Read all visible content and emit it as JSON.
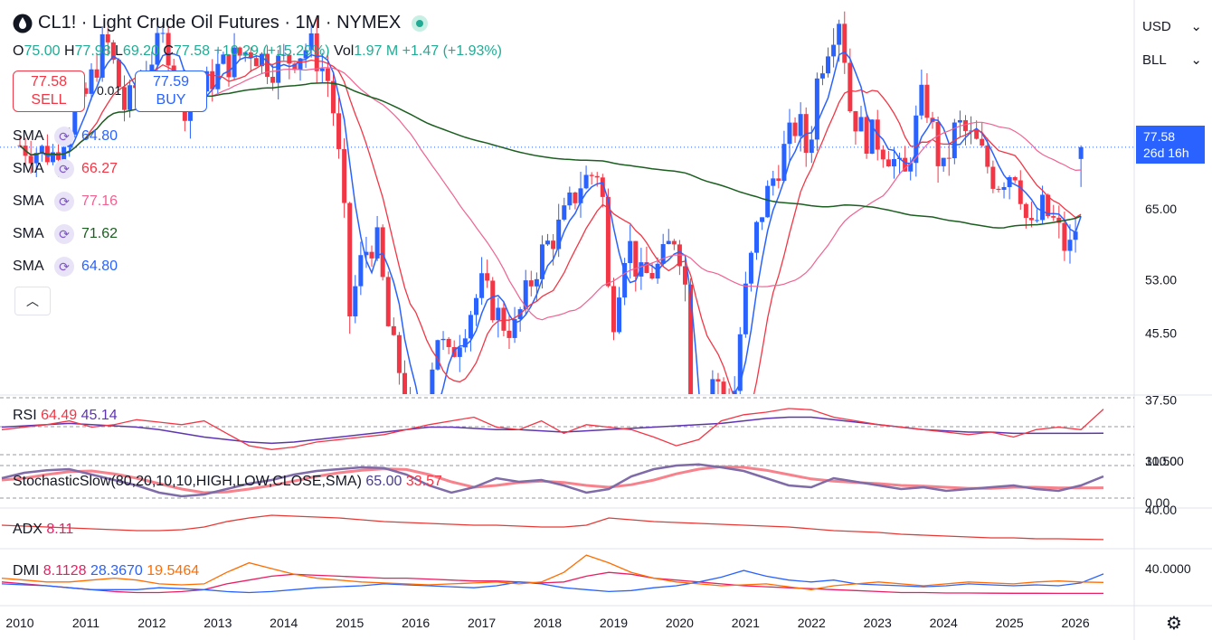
{
  "header": {
    "title": "CL1! · Light Crude Oil Futures · 1M · NYMEX",
    "open_label": "O",
    "open": "75.00",
    "high_label": "H",
    "high": "77.98",
    "low_label": "L",
    "low": "69.20",
    "close_label": "C",
    "close": "77.58",
    "change": "+10.29 (+15.29%)",
    "vol_label": "Vol",
    "vol": "1.97 M",
    "vol_change": "+1.47 (+1.93%)"
  },
  "trade": {
    "sell_price": "77.58",
    "sell_label": "SELL",
    "buy_price": "77.59",
    "buy_label": "BUY",
    "spread": "0.01"
  },
  "sma_legend": [
    {
      "label": "SMA",
      "value": "64.80",
      "color": "#2962ff"
    },
    {
      "label": "SMA",
      "value": "66.27",
      "color": "#f23645"
    },
    {
      "label": "SMA",
      "value": "77.16",
      "color": "#f06292"
    },
    {
      "label": "SMA",
      "value": "71.62",
      "color": "#1b5e20"
    },
    {
      "label": "SMA",
      "value": "64.80",
      "color": "#2962ff"
    }
  ],
  "rsi": {
    "label": "RSI",
    "v1": "64.49",
    "v2": "45.14"
  },
  "stoch": {
    "label": "StochasticSlow(80,20,10,10,HIGH,LOW,CLOSE,SMA)",
    "v1": "65.00",
    "v2": "33.57"
  },
  "adx": {
    "label": "ADX",
    "v1": "8.11"
  },
  "dmi": {
    "label": "DMI",
    "v1": "8.1128",
    "v2": "28.3670",
    "v3": "19.5464"
  },
  "axis_controls": {
    "currency": "USD",
    "unit": "BLL"
  },
  "price_tag": {
    "price": "77.58",
    "countdown": "26d 16h"
  },
  "colors": {
    "up": "#2962ff",
    "down": "#f23645",
    "sma_fast": "#2962ff",
    "sma_mid": "#f23645",
    "sma_slow": "#f06292",
    "sma_long": "#1b5e20",
    "rsi": "#f23645",
    "rsi_ma": "#5e35b1",
    "stoch_k": "#7e6ba8",
    "stoch_d": "#f7828c",
    "dmi_plus": "#2962ff",
    "dmi_minus": "#ff6d00",
    "adx": "#e91e63"
  },
  "chart_data": [
    {
      "type": "candlestick",
      "name": "CL1! monthly",
      "x_ticks": [
        "2010",
        "2011",
        "2012",
        "2013",
        "2014",
        "2015",
        "2016",
        "2017",
        "2018",
        "2019",
        "2020",
        "2021",
        "2022",
        "2023",
        "2024",
        "2025",
        "2026"
      ],
      "y_ticks": [
        31.5,
        37.5,
        45.5,
        53.0,
        65.0,
        80.0
      ],
      "log_scale": true,
      "ylim": [
        28,
        125
      ],
      "last_price": 77.58,
      "close_path": [
        [
          2010.0,
          78
        ],
        [
          2010.5,
          76
        ],
        [
          2011.0,
          90
        ],
        [
          2011.3,
          106
        ],
        [
          2011.6,
          86
        ],
        [
          2011.9,
          98
        ],
        [
          2012.2,
          106
        ],
        [
          2012.5,
          88
        ],
        [
          2012.8,
          92
        ],
        [
          2013.0,
          97
        ],
        [
          2013.5,
          103
        ],
        [
          2013.8,
          98
        ],
        [
          2014.0,
          99
        ],
        [
          2014.4,
          104
        ],
        [
          2014.7,
          93
        ],
        [
          2014.9,
          66
        ],
        [
          2015.0,
          48
        ],
        [
          2015.2,
          57
        ],
        [
          2015.4,
          60
        ],
        [
          2015.6,
          45
        ],
        [
          2015.9,
          37
        ],
        [
          2016.0,
          33
        ],
        [
          2016.1,
          30
        ],
        [
          2016.3,
          46
        ],
        [
          2016.5,
          42
        ],
        [
          2016.8,
          48
        ],
        [
          2017.0,
          52
        ],
        [
          2017.3,
          47
        ],
        [
          2017.5,
          46
        ],
        [
          2017.9,
          57
        ],
        [
          2018.2,
          62
        ],
        [
          2018.5,
          70
        ],
        [
          2018.8,
          73
        ],
        [
          2018.95,
          45
        ],
        [
          2019.2,
          60
        ],
        [
          2019.4,
          53
        ],
        [
          2019.7,
          55
        ],
        [
          2019.95,
          61
        ],
        [
          2020.1,
          51
        ],
        [
          2020.2,
          20
        ],
        [
          2020.35,
          19
        ],
        [
          2020.5,
          40
        ],
        [
          2020.8,
          36
        ],
        [
          2020.95,
          48
        ],
        [
          2021.2,
          63
        ],
        [
          2021.5,
          74
        ],
        [
          2021.8,
          84
        ],
        [
          2021.95,
          75
        ],
        [
          2022.1,
          96
        ],
        [
          2022.3,
          108
        ],
        [
          2022.45,
          115
        ],
        [
          2022.55,
          88
        ],
        [
          2022.8,
          80
        ],
        [
          2022.95,
          80
        ],
        [
          2023.2,
          76
        ],
        [
          2023.4,
          70
        ],
        [
          2023.7,
          91
        ],
        [
          2023.9,
          76
        ],
        [
          2024.0,
          72
        ],
        [
          2024.2,
          83
        ],
        [
          2024.5,
          78
        ],
        [
          2024.8,
          70
        ],
        [
          2024.95,
          72
        ],
        [
          2025.1,
          73
        ],
        [
          2025.3,
          60
        ],
        [
          2025.5,
          65
        ],
        [
          2025.7,
          62
        ],
        [
          2025.85,
          58
        ],
        [
          2025.95,
          58
        ],
        [
          2026.05,
          65
        ],
        [
          2026.15,
          77.58
        ]
      ]
    },
    {
      "type": "line",
      "name": "RSI",
      "values": [
        48,
        50,
        52,
        55,
        50,
        52,
        56,
        54,
        52,
        55,
        45,
        35,
        32,
        34,
        38,
        40,
        42,
        44,
        48,
        52,
        55,
        58,
        50,
        48,
        55,
        45,
        52,
        50,
        48,
        42,
        35,
        40,
        55,
        60,
        62,
        65,
        64,
        58,
        55,
        52,
        50,
        48,
        46,
        44,
        46,
        42,
        48,
        50,
        48,
        64.49
      ]
    },
    {
      "type": "line",
      "name": "RSI average",
      "values": [
        50,
        51,
        52,
        53,
        52,
        51,
        50,
        48,
        45,
        42,
        40,
        38,
        37,
        38,
        40,
        42,
        44,
        46,
        48,
        50,
        50,
        49,
        48,
        48,
        47,
        46,
        47,
        48,
        49,
        50,
        51,
        52,
        53,
        55,
        57,
        58,
        58,
        56,
        54,
        52,
        50,
        48,
        47,
        46,
        46,
        45,
        45,
        45,
        45,
        45.14
      ]
    },
    {
      "type": "line",
      "name": "Stoch %K",
      "values": [
        60,
        75,
        82,
        85,
        70,
        55,
        40,
        20,
        10,
        15,
        30,
        45,
        55,
        70,
        80,
        85,
        90,
        88,
        70,
        40,
        20,
        35,
        60,
        50,
        55,
        40,
        20,
        30,
        65,
        85,
        95,
        98,
        90,
        80,
        60,
        40,
        35,
        60,
        50,
        40,
        30,
        35,
        25,
        30,
        35,
        40,
        30,
        25,
        40,
        65.0
      ]
    },
    {
      "type": "line",
      "name": "Stoch %D",
      "values": [
        55,
        60,
        70,
        78,
        80,
        72,
        60,
        45,
        30,
        20,
        22,
        30,
        40,
        52,
        65,
        75,
        82,
        86,
        84,
        70,
        50,
        35,
        40,
        48,
        52,
        48,
        40,
        35,
        42,
        55,
        72,
        85,
        92,
        90,
        82,
        70,
        58,
        52,
        48,
        45,
        40,
        38,
        35,
        32,
        32,
        35,
        35,
        33,
        33,
        33.57
      ]
    },
    {
      "type": "line",
      "name": "ADX",
      "values": [
        24,
        23,
        22,
        21,
        20,
        19,
        18,
        18,
        19,
        22,
        28,
        32,
        35,
        34,
        33,
        32,
        30,
        28,
        27,
        26,
        25,
        24,
        24,
        23,
        22,
        22,
        24,
        32,
        30,
        28,
        27,
        26,
        25,
        24,
        23,
        22,
        20,
        18,
        17,
        16,
        14,
        13,
        12,
        11,
        10,
        10,
        9,
        9,
        8.5,
        8.11
      ]
    },
    {
      "type": "line",
      "name": "DMI (line 1)",
      "values": [
        20,
        18,
        16,
        14,
        12,
        10,
        9,
        9,
        10,
        12,
        18,
        22,
        26,
        28,
        27,
        26,
        25,
        24,
        24,
        23,
        22,
        21,
        21,
        20,
        19,
        20,
        26,
        30,
        28,
        24,
        22,
        20,
        18,
        16,
        15,
        14,
        13,
        12,
        11,
        10,
        9,
        9,
        8.5,
        8.5,
        8.3,
        8.2,
        8.2,
        8.1,
        8.1,
        8.1128
      ]
    },
    {
      "type": "line",
      "name": "DMI (line 2)",
      "values": [
        18,
        17,
        16,
        14,
        12,
        12,
        12,
        14,
        13,
        12,
        10,
        9,
        10,
        12,
        14,
        15,
        16,
        18,
        17,
        16,
        15,
        14,
        16,
        20,
        18,
        14,
        12,
        10,
        11,
        14,
        16,
        20,
        25,
        32,
        26,
        22,
        20,
        22,
        18,
        17,
        16,
        15,
        16,
        18,
        17,
        16,
        17,
        16,
        19,
        28.367
      ]
    },
    {
      "type": "line",
      "name": "DMI (line 3)",
      "values": [
        24,
        22,
        20,
        20,
        22,
        24,
        22,
        18,
        17,
        18,
        30,
        40,
        34,
        28,
        24,
        22,
        20,
        19,
        18,
        17,
        18,
        19,
        20,
        18,
        20,
        30,
        48,
        40,
        30,
        24,
        20,
        18,
        16,
        17,
        18,
        15,
        12,
        16,
        18,
        20,
        18,
        16,
        18,
        20,
        19,
        18,
        20,
        21,
        20,
        19.5464
      ]
    }
  ]
}
